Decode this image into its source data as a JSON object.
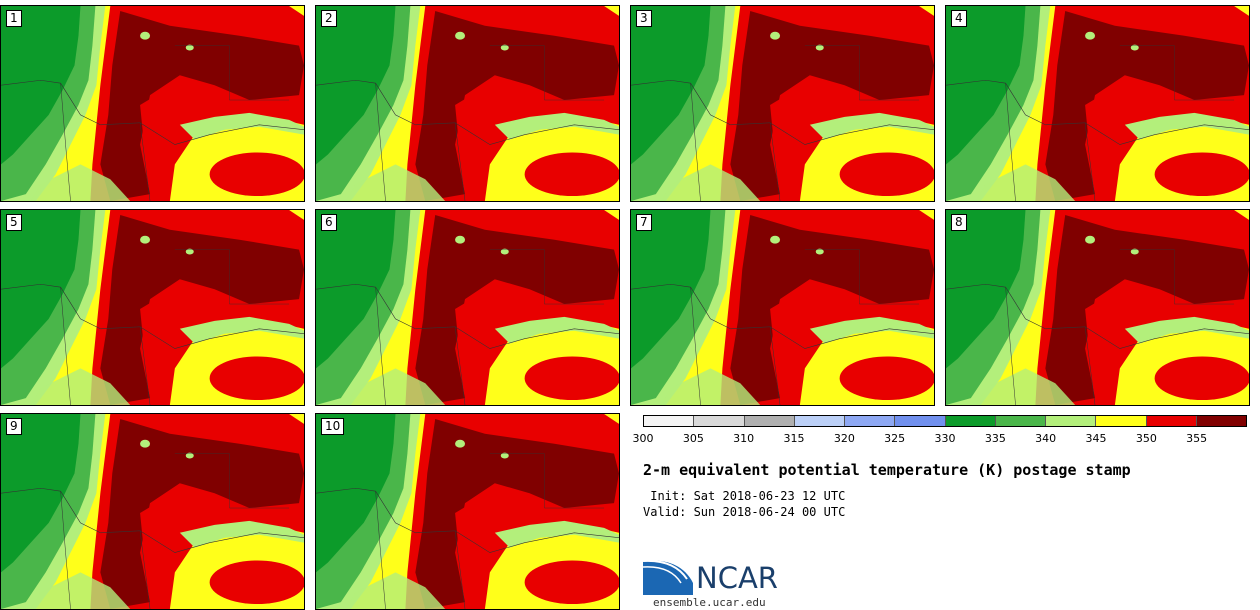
{
  "panels": [
    {
      "label": "1"
    },
    {
      "label": "2"
    },
    {
      "label": "3"
    },
    {
      "label": "4"
    },
    {
      "label": "5"
    },
    {
      "label": "6"
    },
    {
      "label": "7"
    },
    {
      "label": "8"
    },
    {
      "label": "9"
    },
    {
      "label": "10"
    }
  ],
  "colorbar": {
    "colors": [
      "#f4f4f4",
      "#d9d9d9",
      "#b0b0b0",
      "#bcd0f7",
      "#8ea8f3",
      "#7190ee",
      "#0c9b2a",
      "#4ab64a",
      "#b3ef7b",
      "#ffff1a",
      "#e80000",
      "#800000"
    ],
    "tick_labels": [
      "300",
      "305",
      "310",
      "315",
      "320",
      "325",
      "330",
      "335",
      "340",
      "345",
      "350",
      "355"
    ]
  },
  "title": "2-m equivalent potential temperature (K) postage stamp",
  "init": " Init: Sat 2018-06-23 12 UTC",
  "valid": "Valid: Sun 2018-06-24 00 UTC",
  "logo": {
    "text": "NCAR",
    "url": "ensemble.ucar.edu",
    "colors": {
      "blue": "#1b67b3",
      "navy": "#1a3f6b"
    }
  },
  "map_colors": {
    "green_dark": "#0c9b2a",
    "green_mid": "#4ab64a",
    "green_light": "#b3ef7b",
    "yellow": "#ffff1a",
    "red": "#e80000",
    "maroon": "#800000"
  }
}
